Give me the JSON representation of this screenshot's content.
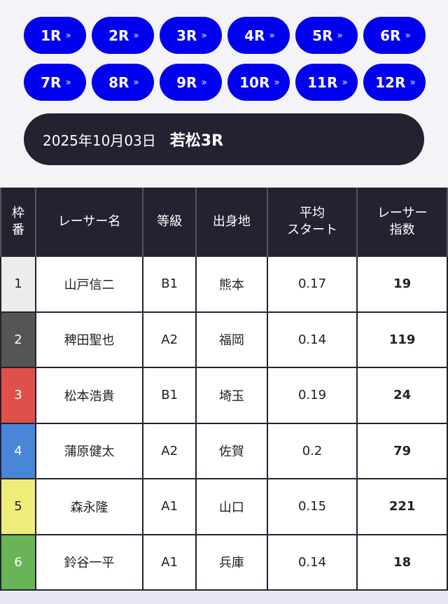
{
  "races": [
    {
      "label": "1R"
    },
    {
      "label": "2R"
    },
    {
      "label": "3R"
    },
    {
      "label": "4R"
    },
    {
      "label": "5R"
    },
    {
      "label": "6R"
    },
    {
      "label": "7R"
    },
    {
      "label": "8R"
    },
    {
      "label": "9R"
    },
    {
      "label": "10R"
    },
    {
      "label": "11R"
    },
    {
      "label": "12R"
    }
  ],
  "header": {
    "date": "2025年10月03日",
    "race": "若松3R"
  },
  "table": {
    "headers": {
      "frame_line1": "枠",
      "frame_line2": "番",
      "name": "レーサー名",
      "rank": "等級",
      "hometown": "出身地",
      "avg_start_line1": "平均",
      "avg_start_line2": "スタート",
      "index_line1": "レーサー",
      "index_line2": "指数"
    },
    "rows": [
      {
        "frame": "1",
        "name": "山戸信二",
        "rank": "B1",
        "hometown": "熊本",
        "avg_start": "0.17",
        "index": "19"
      },
      {
        "frame": "2",
        "name": "稗田聖也",
        "rank": "A2",
        "hometown": "福岡",
        "avg_start": "0.14",
        "index": "119"
      },
      {
        "frame": "3",
        "name": "松本浩貴",
        "rank": "B1",
        "hometown": "埼玉",
        "avg_start": "0.19",
        "index": "24"
      },
      {
        "frame": "4",
        "name": "蒲原健太",
        "rank": "A2",
        "hometown": "佐賀",
        "avg_start": "0.2",
        "index": "79"
      },
      {
        "frame": "5",
        "name": "森永隆",
        "rank": "A1",
        "hometown": "山口",
        "avg_start": "0.15",
        "index": "221"
      },
      {
        "frame": "6",
        "name": "鈴谷一平",
        "rank": "A1",
        "hometown": "兵庫",
        "avg_start": "0.14",
        "index": "18"
      }
    ]
  },
  "colors": {
    "accent": "#0000ee",
    "dark": "#222230",
    "frame_colors": [
      "#ececec",
      "#555555",
      "#e0504b",
      "#4a86d8",
      "#efed7a",
      "#68b456"
    ]
  }
}
